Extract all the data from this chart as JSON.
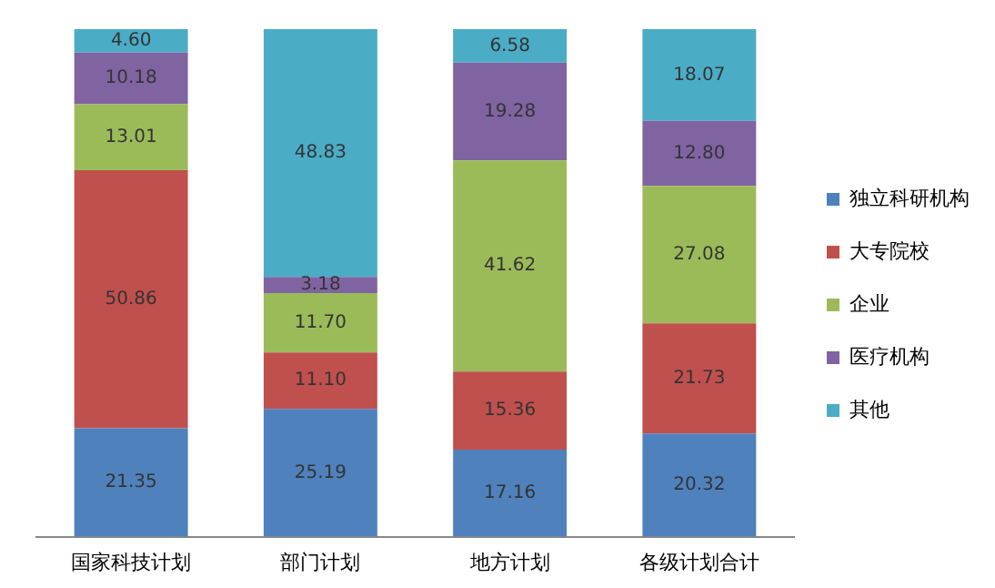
{
  "chart_data": {
    "type": "bar",
    "stacked": true,
    "categories": [
      "国家科技计划",
      "部门计划",
      "地方计划",
      "各级计划合计"
    ],
    "series": [
      {
        "name": "独立科研机构",
        "color": "#4f81bd",
        "values": [
          21.35,
          25.19,
          17.16,
          20.32
        ],
        "value_labels": [
          "21.35",
          "25.19",
          "17.16",
          "20.32"
        ]
      },
      {
        "name": "大专院校",
        "color": "#c0504d",
        "values": [
          50.86,
          11.1,
          15.36,
          21.73
        ],
        "value_labels": [
          "50.86",
          "11.10",
          "15.36",
          "21.73"
        ]
      },
      {
        "name": "企业",
        "color": "#9bbb59",
        "values": [
          13.01,
          11.7,
          41.62,
          27.08
        ],
        "value_labels": [
          "13.01",
          "11.70",
          "41.62",
          "27.08"
        ]
      },
      {
        "name": "医疗机构",
        "color": "#8064a2",
        "values": [
          10.18,
          3.18,
          19.28,
          12.8
        ],
        "value_labels": [
          "10.18",
          "3.18",
          "19.28",
          "12.80"
        ]
      },
      {
        "name": "其他",
        "color": "#4bacc6",
        "values": [
          4.6,
          48.83,
          6.58,
          18.07
        ],
        "value_labels": [
          "4.60",
          "48.83",
          "6.58",
          "18.07"
        ]
      }
    ],
    "ylim": [
      0,
      100
    ],
    "tick_labels": "x",
    "legend": "right",
    "grid": false
  }
}
